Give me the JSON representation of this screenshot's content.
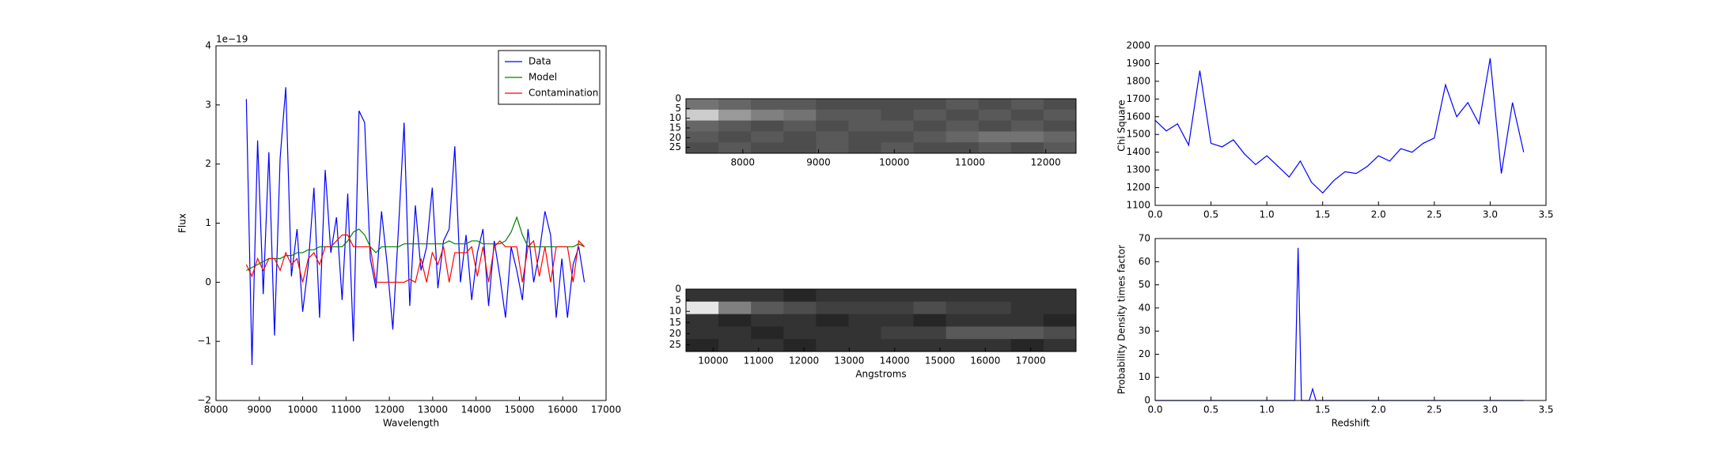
{
  "chart_data": [
    {
      "type": "line",
      "xlabel": "Wavelength",
      "ylabel": "Flux",
      "offset_label": "1e−19",
      "x": [
        8700,
        8830,
        8960,
        9090,
        9220,
        9350,
        9480,
        9610,
        9740,
        9870,
        10000,
        10130,
        10260,
        10390,
        10520,
        10650,
        10780,
        10910,
        11040,
        11170,
        11300,
        11430,
        11560,
        11690,
        11820,
        11950,
        12080,
        12210,
        12340,
        12470,
        12600,
        12730,
        12860,
        12990,
        13120,
        13250,
        13380,
        13510,
        13640,
        13770,
        13900,
        14030,
        14160,
        14290,
        14420,
        14550,
        14680,
        14810,
        14940,
        15070,
        15200,
        15330,
        15460,
        15590,
        15720,
        15850,
        15980,
        16110,
        16240,
        16370,
        16500
      ],
      "series": [
        {
          "name": "Data",
          "color": "#0000ff",
          "values": [
            3.1,
            -1.4,
            2.4,
            -0.2,
            2.2,
            -0.9,
            2.1,
            3.3,
            0.1,
            0.9,
            -0.5,
            0.3,
            1.6,
            -0.6,
            1.9,
            0.5,
            1.1,
            -0.3,
            1.5,
            -1.0,
            2.9,
            2.7,
            0.4,
            -0.1,
            1.2,
            0.3,
            -0.8,
            0.9,
            2.7,
            -0.4,
            1.3,
            0.2,
            0.6,
            1.6,
            -0.1,
            0.7,
            0.9,
            2.3,
            0.0,
            0.8,
            -0.3,
            0.5,
            0.9,
            -0.4,
            0.7,
            0.1,
            -0.6,
            0.6,
            0.2,
            -0.3,
            0.9,
            0.0,
            0.5,
            1.2,
            0.8,
            -0.6,
            0.4,
            -0.6,
            0.3,
            0.6,
            0.0
          ]
        },
        {
          "name": "Model",
          "color": "#008000",
          "values": [
            0.2,
            0.25,
            0.3,
            0.35,
            0.4,
            0.4,
            0.4,
            0.45,
            0.45,
            0.5,
            0.5,
            0.55,
            0.55,
            0.6,
            0.6,
            0.6,
            0.6,
            0.6,
            0.7,
            0.85,
            0.9,
            0.8,
            0.6,
            0.5,
            0.6,
            0.6,
            0.6,
            0.6,
            0.65,
            0.65,
            0.65,
            0.65,
            0.65,
            0.65,
            0.65,
            0.65,
            0.7,
            0.65,
            0.65,
            0.65,
            0.7,
            0.7,
            0.65,
            0.65,
            0.65,
            0.65,
            0.7,
            0.85,
            1.1,
            0.8,
            0.6,
            0.6,
            0.6,
            0.6,
            0.6,
            0.6,
            0.6,
            0.6,
            0.6,
            0.65,
            0.6
          ]
        },
        {
          "name": "Contamination",
          "color": "#ff0000",
          "values": [
            0.3,
            0.1,
            0.4,
            0.2,
            0.4,
            0.4,
            0.2,
            0.5,
            0.3,
            0.4,
            0.0,
            0.4,
            0.5,
            0.3,
            0.6,
            0.6,
            0.7,
            0.8,
            0.8,
            0.6,
            0.6,
            0.6,
            0.6,
            0.0,
            0.0,
            0.0,
            0.0,
            0.0,
            0.0,
            0.05,
            0.0,
            0.4,
            0.0,
            0.5,
            0.3,
            0.6,
            0.0,
            0.5,
            0.5,
            0.5,
            0.6,
            0.1,
            0.6,
            0.0,
            0.6,
            0.7,
            0.6,
            0.6,
            0.6,
            0.0,
            0.6,
            0.7,
            0.1,
            0.6,
            0.0,
            0.6,
            0.6,
            0.6,
            0.0,
            0.7,
            0.6
          ]
        }
      ],
      "xlim": [
        8000,
        17000
      ],
      "xticks": [
        8000,
        9000,
        10000,
        11000,
        12000,
        13000,
        14000,
        15000,
        16000,
        17000
      ],
      "ylim": [
        -2,
        4
      ],
      "yticks": [
        {
          "value": -2,
          "label": "−2"
        },
        {
          "value": -1,
          "label": "−1"
        },
        0,
        1,
        2,
        3,
        4
      ],
      "legend": "upper right"
    },
    {
      "type": "heatmap",
      "xlim": [
        7250,
        12400
      ],
      "xticks": [
        8000,
        9000,
        10000,
        11000,
        12000
      ],
      "ylim": [
        28,
        0
      ],
      "yticks": [
        0,
        5,
        10,
        15,
        20,
        25
      ],
      "z": [
        [
          0.45,
          0.4,
          0.35,
          0.35,
          0.3,
          0.3,
          0.3,
          0.3,
          0.35,
          0.3,
          0.35,
          0.3
        ],
        [
          0.8,
          0.6,
          0.5,
          0.45,
          0.35,
          0.35,
          0.3,
          0.35,
          0.3,
          0.35,
          0.3,
          0.35
        ],
        [
          0.4,
          0.35,
          0.3,
          0.35,
          0.3,
          0.35,
          0.35,
          0.3,
          0.35,
          0.3,
          0.35,
          0.3
        ],
        [
          0.35,
          0.3,
          0.35,
          0.3,
          0.35,
          0.3,
          0.3,
          0.35,
          0.4,
          0.45,
          0.45,
          0.4
        ],
        [
          0.3,
          0.35,
          0.3,
          0.3,
          0.35,
          0.3,
          0.35,
          0.3,
          0.3,
          0.35,
          0.3,
          0.35
        ]
      ]
    },
    {
      "type": "heatmap",
      "xlabel": "Angstroms",
      "xlim": [
        9400,
        18000
      ],
      "xticks": [
        10000,
        11000,
        12000,
        13000,
        14000,
        15000,
        16000,
        17000
      ],
      "ylim": [
        28,
        0
      ],
      "yticks": [
        0,
        5,
        10,
        15,
        20,
        25
      ],
      "z": [
        [
          0.2,
          0.2,
          0.2,
          0.15,
          0.2,
          0.2,
          0.2,
          0.2,
          0.2,
          0.2,
          0.2,
          0.2
        ],
        [
          0.9,
          0.5,
          0.35,
          0.3,
          0.25,
          0.25,
          0.25,
          0.3,
          0.25,
          0.25,
          0.2,
          0.2
        ],
        [
          0.2,
          0.15,
          0.2,
          0.2,
          0.15,
          0.2,
          0.2,
          0.15,
          0.2,
          0.2,
          0.2,
          0.15
        ],
        [
          0.2,
          0.2,
          0.15,
          0.2,
          0.2,
          0.2,
          0.25,
          0.25,
          0.35,
          0.35,
          0.35,
          0.3
        ],
        [
          0.15,
          0.2,
          0.2,
          0.15,
          0.2,
          0.2,
          0.2,
          0.2,
          0.2,
          0.2,
          0.15,
          0.2
        ]
      ]
    },
    {
      "type": "line",
      "ylabel": "Chi Square",
      "color": "#0000ff",
      "x": [
        0,
        0.1,
        0.2,
        0.3,
        0.4,
        0.5,
        0.6,
        0.7,
        0.8,
        0.9,
        1.0,
        1.1,
        1.2,
        1.3,
        1.4,
        1.5,
        1.6,
        1.7,
        1.8,
        1.9,
        2.0,
        2.1,
        2.2,
        2.3,
        2.4,
        2.5,
        2.6,
        2.7,
        2.8,
        2.9,
        3.0,
        3.1,
        3.2,
        3.3
      ],
      "values": [
        1580,
        1520,
        1560,
        1440,
        1860,
        1450,
        1430,
        1470,
        1390,
        1330,
        1380,
        1320,
        1260,
        1350,
        1230,
        1170,
        1240,
        1290,
        1280,
        1320,
        1380,
        1350,
        1420,
        1400,
        1450,
        1480,
        1780,
        1600,
        1680,
        1560,
        1930,
        1280,
        1680,
        1400
      ],
      "xlim": [
        0,
        3.5
      ],
      "xticks": [
        {
          "value": 0,
          "label": "0.0"
        },
        0.5,
        {
          "value": 1,
          "label": "1.0"
        },
        1.5,
        {
          "value": 2,
          "label": "2.0"
        },
        2.5,
        {
          "value": 3,
          "label": "3.0"
        },
        3.5
      ],
      "ylim": [
        1100,
        2000
      ],
      "yticks": [
        1100,
        1200,
        1300,
        1400,
        1500,
        1600,
        1700,
        1800,
        1900,
        2000
      ]
    },
    {
      "type": "line",
      "xlabel": "Redshift",
      "ylabel": "Probability Density times factor",
      "color": "#0000ff",
      "x": [
        0,
        1.2,
        1.25,
        1.28,
        1.31,
        1.38,
        1.41,
        1.44,
        3.3
      ],
      "values": [
        0,
        0,
        0,
        66,
        0,
        0,
        5,
        0,
        0
      ],
      "xlim": [
        0,
        3.5
      ],
      "xticks": [
        {
          "value": 0,
          "label": "0.0"
        },
        0.5,
        {
          "value": 1,
          "label": "1.0"
        },
        1.5,
        {
          "value": 2,
          "label": "2.0"
        },
        2.5,
        {
          "value": 3,
          "label": "3.0"
        },
        3.5
      ],
      "ylim": [
        0,
        70
      ],
      "yticks": [
        0,
        10,
        20,
        30,
        40,
        50,
        60,
        70
      ]
    }
  ]
}
